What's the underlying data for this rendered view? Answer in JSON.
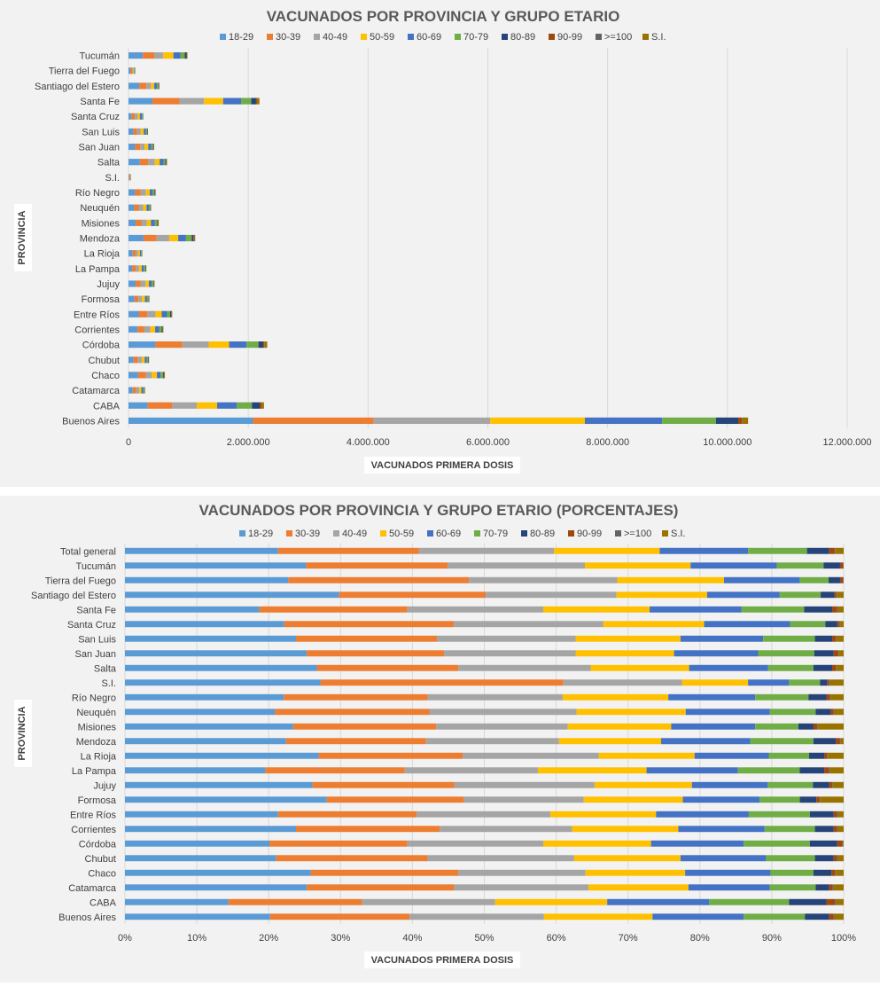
{
  "colors": {
    "series": [
      "#5b9bd5",
      "#ed7d31",
      "#a5a5a5",
      "#ffc000",
      "#4472c4",
      "#70ad47",
      "#264478",
      "#9e480e",
      "#636363",
      "#997300"
    ],
    "background": "#f2f2f2",
    "grid": "#d9d9d9"
  },
  "chart_data": [
    {
      "type": "bar",
      "orientation": "horizontal",
      "stacked": true,
      "title": "VACUNADOS POR PROVINCIA Y GRUPO ETARIO",
      "xlabel": "VACUNADOS PRIMERA  DOSIS",
      "ylabel": "PROVINCIA",
      "legend_position": "top",
      "grid": true,
      "xlim": [
        0,
        12000000
      ],
      "xticks": [
        0,
        2000000,
        4000000,
        6000000,
        8000000,
        10000000,
        12000000
      ],
      "xtick_labels": [
        "0",
        "2.000.000",
        "4.000.000",
        "6.000.000",
        "8.000.000",
        "10.000.000",
        "12.000.000"
      ],
      "categories": [
        "Tucumán",
        "Tierra del Fuego",
        "Santiago del Estero",
        "Santa Fe",
        "Santa Cruz",
        "San Luis",
        "San Juan",
        "Salta",
        "S.I.",
        "Río Negro",
        "Neuquén",
        "Misiones",
        "Mendoza",
        "La Rioja",
        "La Pampa",
        "Jujuy",
        "Formosa",
        "Entre Ríos",
        "Corrientes",
        "Córdoba",
        "Chubut",
        "Chaco",
        "Catamarca",
        "CABA",
        "Buenos Aires"
      ],
      "series": [
        {
          "name": "18-29",
          "values": [
            240000,
            30000,
            180000,
            400000,
            50000,
            80000,
            110000,
            190000,
            10000,
            110000,
            90000,
            120000,
            250000,
            70000,
            60000,
            120000,
            100000,
            170000,
            150000,
            450000,
            80000,
            160000,
            70000,
            320000,
            2080000
          ]
        },
        {
          "name": "30-39",
          "values": [
            190000,
            30000,
            120000,
            450000,
            55000,
            65000,
            85000,
            140000,
            14000,
            95000,
            80000,
            95000,
            220000,
            50000,
            60000,
            85000,
            65000,
            145000,
            115000,
            450000,
            80000,
            130000,
            60000,
            410000,
            2010000
          ]
        },
        {
          "name": "40-49",
          "values": [
            150000,
            20000,
            75000,
            410000,
            50000,
            60000,
            75000,
            110000,
            7000,
            85000,
            75000,
            90000,
            210000,
            40000,
            55000,
            80000,
            60000,
            135000,
            100000,
            440000,
            65000,
            100000,
            50000,
            410000,
            1950000
          ]
        },
        {
          "name": "50-59",
          "values": [
            170000,
            15000,
            55000,
            320000,
            35000,
            50000,
            60000,
            80000,
            4000,
            65000,
            55000,
            70000,
            150000,
            30000,
            45000,
            55000,
            50000,
            105000,
            80000,
            340000,
            45000,
            85000,
            35000,
            340000,
            1580000
          ]
        },
        {
          "name": "60-69",
          "values": [
            120000,
            10000,
            45000,
            300000,
            35000,
            35000,
            50000,
            65000,
            3000,
            50000,
            40000,
            65000,
            130000,
            20000,
            35000,
            45000,
            35000,
            90000,
            70000,
            290000,
            35000,
            60000,
            30000,
            330000,
            1290000
          ]
        },
        {
          "name": "70-79",
          "values": [
            70000,
            5000,
            25000,
            170000,
            15000,
            20000,
            30000,
            30000,
            2000,
            30000,
            25000,
            35000,
            95000,
            10000,
            25000,
            30000,
            20000,
            50000,
            40000,
            200000,
            20000,
            40000,
            20000,
            250000,
            900000
          ]
        },
        {
          "name": "80-89",
          "values": [
            30000,
            2000,
            8000,
            80000,
            4000,
            8000,
            10000,
            15000,
            1000,
            10000,
            7000,
            10000,
            30000,
            3000,
            9000,
            9000,
            7000,
            20000,
            15000,
            80000,
            8000,
            15000,
            5000,
            130000,
            370000
          ]
        },
        {
          "name": "90-99",
          "values": [
            5000,
            500,
            2000,
            15000,
            600,
            1500,
            2000,
            3000,
            500,
            2000,
            1000,
            2000,
            8000,
            500,
            2000,
            1500,
            1000,
            3000,
            2500,
            15000,
            1500,
            2500,
            1000,
            30000,
            60000
          ]
        },
        {
          "name": ">=100",
          "values": [
            500,
            100,
            200,
            1000,
            100,
            200,
            200,
            300,
            100,
            200,
            100,
            200,
            500,
            100,
            200,
            200,
            100,
            300,
            200,
            1000,
            100,
            300,
            100,
            2000,
            5000
          ]
        },
        {
          "name": "S.I.",
          "values": [
            9000,
            1400,
            7000,
            40000,
            3000,
            5000,
            6000,
            10000,
            2000,
            8000,
            6000,
            18000,
            20000,
            8000,
            7000,
            9000,
            12000,
            12000,
            10000,
            50000,
            8000,
            15000,
            6000,
            40000,
            100000
          ]
        }
      ]
    },
    {
      "type": "bar",
      "orientation": "horizontal",
      "stacked": true,
      "percent": true,
      "title": "VACUNADOS POR PROVINCIA Y GRUPO ETARIO (PORCENTAJES)",
      "xlabel": "VACUNADOS PRIMERA  DOSIS",
      "ylabel": "PROVINCIA",
      "legend_position": "top",
      "grid": true,
      "xlim": [
        0,
        100
      ],
      "xticks": [
        0,
        10,
        20,
        30,
        40,
        50,
        60,
        70,
        80,
        90,
        100
      ],
      "xtick_labels": [
        "0%",
        "10%",
        "20%",
        "30%",
        "40%",
        "50%",
        "60%",
        "70%",
        "80%",
        "90%",
        "100%"
      ],
      "categories": [
        "Total general",
        "Tucumán",
        "Tierra del Fuego",
        "Santiago del Estero",
        "Santa Fe",
        "Santa Cruz",
        "San Luis",
        "San Juan",
        "Salta",
        "S.I.",
        "Río Negro",
        "Neuquén",
        "Misiones",
        "Mendoza",
        "La Rioja",
        "La Pampa",
        "Jujuy",
        "Formosa",
        "Entre Ríos",
        "Corrientes",
        "Córdoba",
        "Chubut",
        "Chaco",
        "Catamarca",
        "CABA",
        "Buenos Aires"
      ],
      "series": [
        {
          "name": "18-29",
          "values": [
            21.3,
            25.2,
            22.8,
            29.8,
            18.7,
            22.6,
            23.8,
            25.3,
            26.7,
            27.2,
            22.1,
            20.9,
            23.4,
            22.4,
            26.9,
            19.5,
            26.2,
            28.1,
            21.3,
            23.8,
            20.1,
            21.0,
            25.9,
            25.3,
            14.4,
            20.2
          ]
        },
        {
          "name": "30-39",
          "values": [
            19.6,
            19.7,
            25.2,
            20.4,
            20.6,
            24.1,
            19.6,
            19.1,
            19.7,
            33.8,
            20.0,
            21.5,
            19.9,
            19.5,
            20.0,
            19.4,
            19.8,
            19.1,
            19.3,
            20.0,
            19.2,
            21.1,
            20.6,
            20.5,
            18.6,
            19.4
          ]
        },
        {
          "name": "40-49",
          "values": [
            18.8,
            19.1,
            20.7,
            18.2,
            18.9,
            21.2,
            19.3,
            18.3,
            18.4,
            16.5,
            18.8,
            20.5,
            18.3,
            18.5,
            18.9,
            18.5,
            19.6,
            16.7,
            18.6,
            18.4,
            18.9,
            20.4,
            17.7,
            18.7,
            18.5,
            18.7
          ]
        },
        {
          "name": "50-59",
          "values": [
            14.7,
            14.7,
            14.9,
            12.6,
            14.8,
            14.3,
            14.6,
            13.7,
            13.7,
            9.2,
            14.7,
            15.2,
            14.4,
            14.2,
            13.3,
            15.1,
            13.6,
            13.8,
            14.7,
            14.8,
            15.0,
            14.8,
            13.9,
            13.9,
            15.6,
            15.1
          ]
        },
        {
          "name": "60-69",
          "values": [
            12.3,
            12.0,
            10.6,
            10.1,
            12.8,
            12.2,
            11.5,
            11.7,
            11.0,
            5.7,
            12.1,
            11.7,
            11.7,
            12.4,
            10.3,
            12.7,
            10.6,
            10.7,
            12.9,
            12.0,
            12.9,
            11.9,
            11.9,
            11.3,
            14.2,
            12.7
          ]
        },
        {
          "name": "70-79",
          "values": [
            8.2,
            6.5,
            4.0,
            5.7,
            8.7,
            5.0,
            7.2,
            7.8,
            6.3,
            4.3,
            7.4,
            6.4,
            6.0,
            8.8,
            5.6,
            8.6,
            6.3,
            5.6,
            8.5,
            7.0,
            9.2,
            6.8,
            6.0,
            6.4,
            11.1,
            8.5
          ]
        },
        {
          "name": "80-89",
          "values": [
            3.1,
            2.3,
            1.6,
            1.9,
            3.9,
            1.7,
            2.4,
            2.7,
            2.6,
            1.0,
            2.5,
            2.1,
            2.1,
            3.1,
            2.1,
            3.4,
            2.3,
            2.3,
            3.3,
            2.6,
            3.8,
            2.6,
            2.5,
            1.9,
            5.2,
            3.4
          ]
        },
        {
          "name": "90-99",
          "values": [
            0.7,
            0.4,
            0.4,
            0.3,
            0.7,
            0.3,
            0.5,
            0.6,
            0.5,
            0.3,
            0.5,
            0.4,
            0.5,
            0.6,
            0.4,
            0.7,
            0.4,
            0.4,
            0.5,
            0.5,
            0.7,
            0.5,
            0.5,
            0.5,
            1.2,
            0.6
          ]
        },
        {
          "name": ">=100",
          "values": [
            0.1,
            0.1,
            0.1,
            0.1,
            0.1,
            0.1,
            0.1,
            0.1,
            0.1,
            0.1,
            0.1,
            0.1,
            0.1,
            0.1,
            0.1,
            0.1,
            0.1,
            0.1,
            0.1,
            0.1,
            0.1,
            0.1,
            0.1,
            0.1,
            0.2,
            0.1
          ]
        },
        {
          "name": "S.I.",
          "values": [
            1.2,
            0.0,
            0.0,
            0.9,
            0.8,
            0.5,
            1.0,
            0.7,
            1.0,
            1.9,
            1.8,
            1.3,
            3.6,
            0.4,
            2.2,
            1.9,
            1.5,
            3.3,
            0.8,
            0.8,
            0.1,
            0.8,
            1.1,
            1.4,
            1.0,
            1.3
          ]
        }
      ]
    }
  ]
}
